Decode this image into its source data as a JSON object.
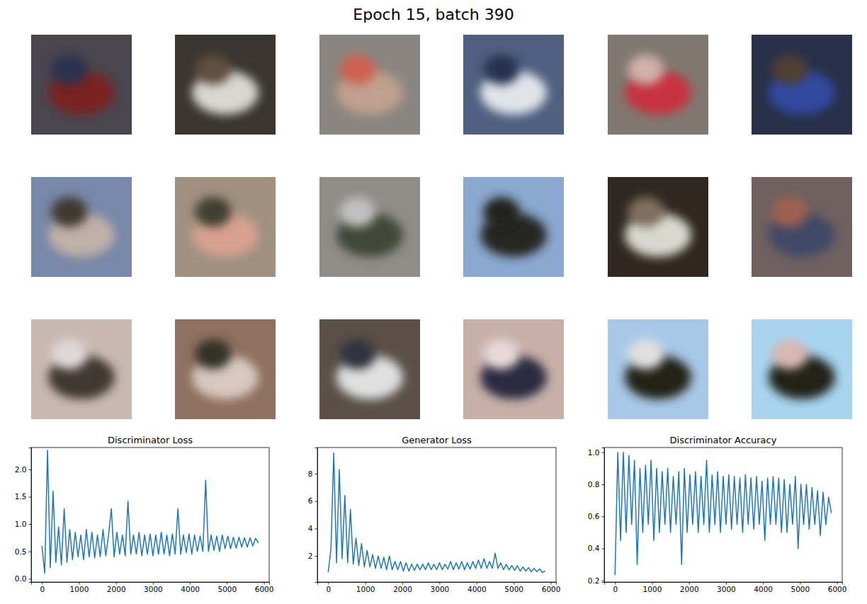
{
  "title": "Epoch 15, batch 390",
  "chart_data": [
    {
      "type": "line",
      "title": "Discriminator Loss",
      "x": [
        0,
        75,
        150,
        225,
        300,
        375,
        450,
        525,
        600,
        675,
        750,
        825,
        900,
        975,
        1050,
        1125,
        1200,
        1275,
        1350,
        1425,
        1500,
        1575,
        1650,
        1725,
        1800,
        1875,
        1950,
        2025,
        2100,
        2175,
        2250,
        2325,
        2400,
        2475,
        2550,
        2625,
        2700,
        2775,
        2850,
        2925,
        3000,
        3075,
        3150,
        3225,
        3300,
        3375,
        3450,
        3525,
        3600,
        3675,
        3750,
        3825,
        3900,
        3975,
        4050,
        4125,
        4200,
        4275,
        4350,
        4425,
        4500,
        4575,
        4650,
        4725,
        4800,
        4875,
        4950,
        5025,
        5100,
        5175,
        5250,
        5325,
        5400,
        5475,
        5550,
        5625,
        5700,
        5775,
        5850
      ],
      "series": [
        {
          "color": "#1f77b4",
          "values": [
            0.6,
            0.1,
            2.35,
            0.2,
            1.6,
            0.3,
            0.95,
            0.25,
            1.28,
            0.3,
            0.9,
            0.35,
            0.85,
            0.4,
            0.8,
            0.35,
            0.9,
            0.4,
            0.85,
            0.38,
            0.8,
            0.4,
            0.9,
            0.42,
            0.8,
            1.28,
            0.4,
            0.85,
            0.45,
            0.8,
            0.42,
            1.42,
            0.45,
            0.8,
            0.45,
            0.85,
            0.42,
            0.8,
            0.45,
            0.82,
            0.42,
            0.8,
            0.45,
            0.85,
            0.45,
            0.8,
            0.42,
            0.82,
            0.45,
            1.28,
            0.45,
            0.8,
            0.48,
            0.82,
            0.45,
            0.8,
            0.5,
            0.78,
            0.5,
            1.8,
            0.5,
            0.8,
            0.52,
            0.78,
            0.5,
            0.8,
            0.55,
            0.78,
            0.55,
            0.76,
            0.56,
            0.76,
            0.58,
            0.75,
            0.58,
            0.75,
            0.6,
            0.74,
            0.65
          ]
        }
      ],
      "xlim": [
        -292,
        6142
      ],
      "xticks": [
        0,
        1000,
        2000,
        3000,
        4000,
        5000,
        6000
      ],
      "ylim": [
        -0.06,
        2.4
      ],
      "yticks": [
        {
          "value": 0,
          "label": "0.0"
        },
        0.5,
        {
          "value": 1,
          "label": "1.0"
        },
        1.5,
        {
          "value": 2,
          "label": "2.0"
        }
      ]
    },
    {
      "type": "line",
      "title": "Generator Loss",
      "x": [
        0,
        75,
        150,
        225,
        300,
        375,
        450,
        525,
        600,
        675,
        750,
        825,
        900,
        975,
        1050,
        1125,
        1200,
        1275,
        1350,
        1425,
        1500,
        1575,
        1650,
        1725,
        1800,
        1875,
        1950,
        2025,
        2100,
        2175,
        2250,
        2325,
        2400,
        2475,
        2550,
        2625,
        2700,
        2775,
        2850,
        2925,
        3000,
        3075,
        3150,
        3225,
        3300,
        3375,
        3450,
        3525,
        3600,
        3675,
        3750,
        3825,
        3900,
        3975,
        4050,
        4125,
        4200,
        4275,
        4350,
        4425,
        4500,
        4575,
        4650,
        4725,
        4800,
        4875,
        4950,
        5025,
        5100,
        5175,
        5250,
        5325,
        5400,
        5475,
        5550,
        5625,
        5700,
        5775,
        5850
      ],
      "series": [
        {
          "color": "#1f77b4",
          "values": [
            0.8,
            2.5,
            9.5,
            1.5,
            8.3,
            1.8,
            6.4,
            1.5,
            5.4,
            1.4,
            3.3,
            1.3,
            2.9,
            1.2,
            2.4,
            1.2,
            2.1,
            1.1,
            2.0,
            1.1,
            1.9,
            1.0,
            2.0,
            1.0,
            1.6,
            1.0,
            1.6,
            0.9,
            1.5,
            0.9,
            1.4,
            0.95,
            1.4,
            1.0,
            1.4,
            1.0,
            1.5,
            1.0,
            1.4,
            1.0,
            1.5,
            1.0,
            1.4,
            1.05,
            1.6,
            1.0,
            1.5,
            1.05,
            1.6,
            1.0,
            1.5,
            1.05,
            1.6,
            1.1,
            1.7,
            1.1,
            1.8,
            1.1,
            1.6,
            1.1,
            2.2,
            1.1,
            1.5,
            1.0,
            1.4,
            1.0,
            1.3,
            0.95,
            1.3,
            0.9,
            1.2,
            0.9,
            1.15,
            0.85,
            1.1,
            0.85,
            1.05,
            0.8,
            0.9
          ]
        }
      ],
      "xlim": [
        -292,
        6142
      ],
      "xticks": [
        0,
        1000,
        2000,
        3000,
        4000,
        5000,
        6000
      ],
      "ylim": [
        0.1,
        9.9
      ],
      "yticks": [
        2,
        4,
        6,
        8
      ]
    },
    {
      "type": "line",
      "title": "Discriminator Accuracy",
      "x": [
        0,
        75,
        150,
        225,
        300,
        375,
        450,
        525,
        600,
        675,
        750,
        825,
        900,
        975,
        1050,
        1125,
        1200,
        1275,
        1350,
        1425,
        1500,
        1575,
        1650,
        1725,
        1800,
        1875,
        1950,
        2025,
        2100,
        2175,
        2250,
        2325,
        2400,
        2475,
        2550,
        2625,
        2700,
        2775,
        2850,
        2925,
        3000,
        3075,
        3150,
        3225,
        3300,
        3375,
        3450,
        3525,
        3600,
        3675,
        3750,
        3825,
        3900,
        3975,
        4050,
        4125,
        4200,
        4275,
        4350,
        4425,
        4500,
        4575,
        4650,
        4725,
        4800,
        4875,
        4950,
        5025,
        5100,
        5175,
        5250,
        5325,
        5400,
        5475,
        5550,
        5625,
        5700,
        5775,
        5850
      ],
      "series": [
        {
          "color": "#1f77b4",
          "values": [
            0.234,
            1.0,
            0.45,
            1.0,
            0.5,
            0.98,
            0.55,
            0.95,
            0.3,
            0.9,
            0.5,
            0.92,
            0.55,
            0.95,
            0.45,
            0.9,
            0.5,
            0.88,
            0.55,
            0.9,
            0.5,
            0.85,
            0.55,
            0.88,
            0.3,
            0.9,
            0.5,
            0.86,
            0.55,
            0.88,
            0.5,
            0.85,
            0.55,
            0.95,
            0.5,
            0.86,
            0.55,
            0.88,
            0.5,
            0.85,
            0.55,
            0.86,
            0.52,
            0.85,
            0.55,
            0.84,
            0.5,
            0.86,
            0.55,
            0.84,
            0.52,
            0.85,
            0.55,
            0.82,
            0.45,
            0.84,
            0.55,
            0.85,
            0.55,
            0.84,
            0.5,
            0.83,
            0.5,
            0.8,
            0.55,
            0.85,
            0.4,
            0.8,
            0.55,
            0.8,
            0.52,
            0.78,
            0.55,
            0.76,
            0.48,
            0.75,
            0.55,
            0.72,
            0.62
          ]
        }
      ],
      "xlim": [
        -292,
        6142
      ],
      "xticks": [
        0,
        1000,
        2000,
        3000,
        4000,
        5000,
        6000
      ],
      "ylim": [
        0.19,
        1.03
      ],
      "yticks": [
        0.2,
        0.4,
        0.6,
        0.8,
        {
          "value": 1,
          "label": "1.0"
        }
      ]
    }
  ]
}
